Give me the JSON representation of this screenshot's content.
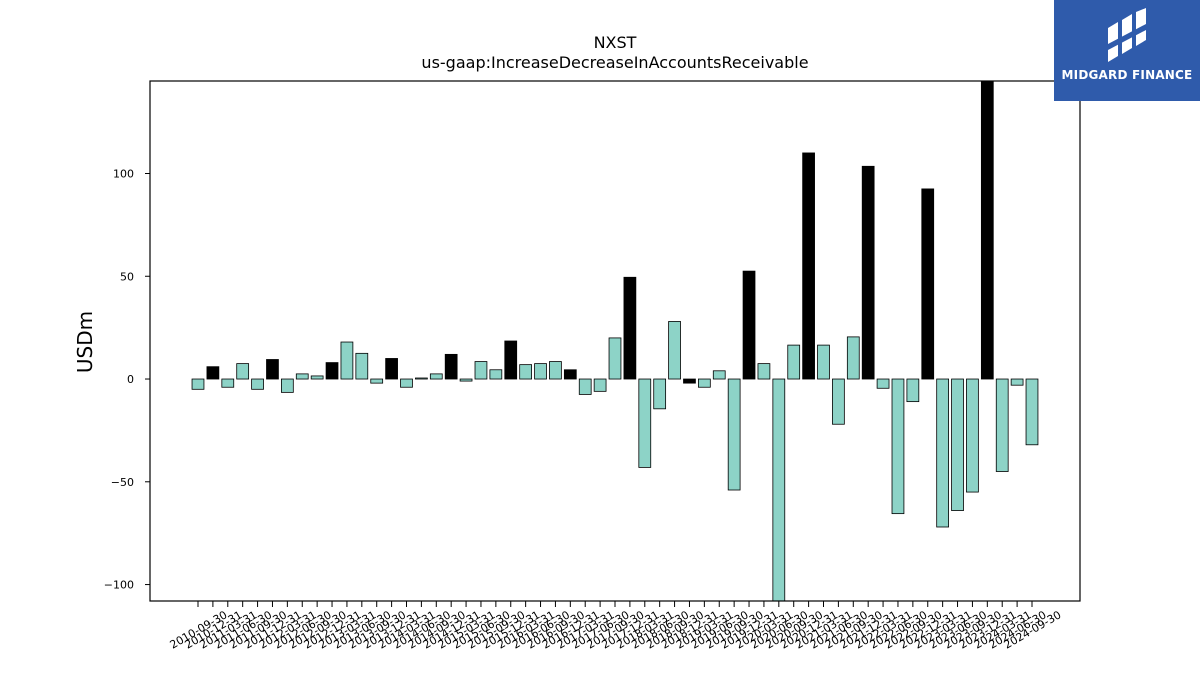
{
  "chart_data": {
    "type": "bar",
    "title": "NXST",
    "subtitle": "us-gaap:IncreaseDecreaseInAccountsReceivable",
    "ylabel": "USDm",
    "xlabel": "",
    "ylim": [
      -108,
      145
    ],
    "yticks": [
      -100,
      -50,
      0,
      50,
      100
    ],
    "grid": false,
    "colors": {
      "quarterly": "#8dd3c7",
      "annual": "#000000",
      "edge": "#000000"
    },
    "categories": [
      "2010-09-30",
      "2010-12-31",
      "2011-03-31",
      "2011-06-30",
      "2011-09-30",
      "2011-12-31",
      "2012-03-31",
      "2012-06-30",
      "2012-09-30",
      "2012-12-31",
      "2013-03-31",
      "2013-06-30",
      "2013-09-30",
      "2013-12-31",
      "2014-03-31",
      "2014-06-30",
      "2014-09-30",
      "2014-12-31",
      "2015-03-31",
      "2015-06-30",
      "2015-09-30",
      "2015-12-31",
      "2016-03-31",
      "2016-06-30",
      "2016-09-30",
      "2016-12-31",
      "2017-03-31",
      "2017-06-30",
      "2017-09-30",
      "2017-12-31",
      "2018-03-31",
      "2018-06-30",
      "2018-09-30",
      "2018-12-31",
      "2019-03-31",
      "2019-06-30",
      "2019-09-30",
      "2019-12-31",
      "2020-03-31",
      "2020-06-30",
      "2020-09-30",
      "2020-12-31",
      "2021-03-31",
      "2021-06-30",
      "2021-09-30",
      "2021-12-31",
      "2022-03-31",
      "2022-06-30",
      "2022-09-30",
      "2022-12-31",
      "2023-03-31",
      "2023-06-30",
      "2023-09-30",
      "2023-12-31",
      "2024-03-31",
      "2024-06-30",
      "2024-09-30"
    ],
    "series": [
      {
        "values": [
          -5,
          6,
          -4,
          7.5,
          -5,
          9.5,
          -6.5,
          2.5,
          1.5,
          8,
          18,
          12.5,
          -2,
          10,
          -4,
          0.5,
          2.5,
          12,
          -1,
          8.5,
          4.5,
          18.5,
          7,
          7.5,
          8.5,
          4.5,
          -7.5,
          -6,
          20,
          49.5,
          -43,
          -14.5,
          28,
          -2,
          -4,
          4,
          -54,
          52.5,
          7.5,
          -108,
          16.5,
          110,
          16.5,
          -22,
          20.5,
          103.5,
          -4.5,
          -65.5,
          -11,
          92.5,
          -72,
          -64,
          -55,
          145,
          -45,
          -3,
          -32
        ],
        "type": [
          "q",
          "a",
          "q",
          "q",
          "q",
          "a",
          "q",
          "q",
          "q",
          "a",
          "q",
          "q",
          "q",
          "a",
          "q",
          "q",
          "q",
          "a",
          "q",
          "q",
          "q",
          "a",
          "q",
          "q",
          "q",
          "a",
          "q",
          "q",
          "q",
          "a",
          "q",
          "q",
          "q",
          "a",
          "q",
          "q",
          "q",
          "a",
          "q",
          "q",
          "q",
          "a",
          "q",
          "q",
          "q",
          "a",
          "q",
          "q",
          "q",
          "a",
          "q",
          "q",
          "q",
          "a",
          "q",
          "q",
          "q"
        ]
      }
    ]
  },
  "logo": {
    "text": "MIDGARD FINANCE",
    "icon": "midgard-logo-icon"
  }
}
